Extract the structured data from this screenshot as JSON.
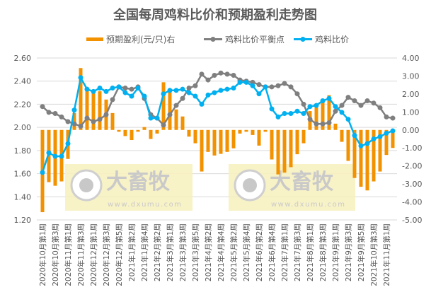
{
  "chart_data": {
    "type": "bar+line",
    "title": "全国每周鸡料比价和预期盈利走势图",
    "legend_position": "top",
    "grid": true,
    "colors": {
      "profit": "#f39200",
      "breakeven": "#7f7f7f",
      "ratio": "#00b0f0",
      "watermark_bg": "#f7f0bd"
    },
    "left_axis": {
      "ylim": [
        1.2,
        2.6
      ],
      "ticks": [
        "1.20",
        "1.40",
        "1.60",
        "1.80",
        "2.00",
        "2.20",
        "2.40",
        "2.60"
      ]
    },
    "right_axis": {
      "ylim": [
        -5,
        4
      ],
      "ticks": [
        "-5.00",
        "-4.00",
        "-3.00",
        "-2.00",
        "-1.00",
        "0.00",
        "1.00",
        "2.00",
        "3.00",
        "4.00"
      ]
    },
    "x_tick_labels": [
      "2020年10月第1周",
      "2020年10月第3周",
      "2020年11月第1周",
      "2020年11月第3周",
      "2020年12月第1周",
      "2020年12月第3周",
      "2020年12月第5周",
      "2021年1月第2周",
      "2021年1月第4周",
      "2021年2月第2周",
      "2021年3月第1周",
      "2021年3月第3周",
      "2021年3月第5周",
      "2021年4月第2周",
      "2021年4月第4周",
      "2021年5月第2周",
      "2021年5月第4周",
      "2021年6月第2周",
      "2021年6月第4周",
      "2021年7月第1周",
      "2021年7月第3周",
      "2021年8月第1周",
      "2021年8月第3周",
      "2021年9月第1周",
      "2021年9月第3周",
      "2021年9月第5周",
      "2021年10月第3周",
      "2021年11月第1周"
    ],
    "series": [
      {
        "name": "预期盈利(元/只)右",
        "type": "bar",
        "axis": "right",
        "values": [
          -4.57,
          -2.9,
          -3.1,
          -2.86,
          -1.61,
          0.94,
          3.44,
          2.26,
          2.13,
          2.15,
          1.69,
          0.94,
          -0.1,
          -0.34,
          -0.56,
          -0.1,
          0.16,
          -0.5,
          -0.2,
          2.65,
          2.13,
          1.14,
          0.75,
          -0.37,
          -0.74,
          -2.31,
          -1.22,
          -1.42,
          -1.33,
          -1.22,
          -1.02,
          -0.2,
          -0.1,
          -0.28,
          -0.87,
          -0.1,
          -1.64,
          -2.47,
          -2.37,
          -2.07,
          -1.35,
          -0.74,
          1.05,
          1.3,
          1.73,
          1.93,
          0.35,
          -0.66,
          -1.72,
          -2.67,
          -3.16,
          -3.36,
          -2.86,
          -2.31,
          -1.39,
          -1.0
        ]
      },
      {
        "name": "鸡料比价平衡点",
        "type": "line",
        "axis": "left",
        "values": [
          2.18,
          2.13,
          2.12,
          2.09,
          2.05,
          2.03,
          2.01,
          2.08,
          2.05,
          2.07,
          2.11,
          2.24,
          2.35,
          2.34,
          2.33,
          2.35,
          2.25,
          2.11,
          2.08,
          2.02,
          2.11,
          2.19,
          2.25,
          2.34,
          2.36,
          2.46,
          2.41,
          2.45,
          2.47,
          2.46,
          2.45,
          2.41,
          2.4,
          2.39,
          2.37,
          2.35,
          2.35,
          2.36,
          2.38,
          2.35,
          2.29,
          2.2,
          2.07,
          2.03,
          2.03,
          2.04,
          2.14,
          2.19,
          2.26,
          2.23,
          2.19,
          2.23,
          2.21,
          2.17,
          2.09,
          2.08
        ]
      },
      {
        "name": "鸡料比价",
        "type": "line",
        "axis": "left",
        "values": [
          1.61,
          1.78,
          1.75,
          1.75,
          1.86,
          2.15,
          2.43,
          2.33,
          2.31,
          2.34,
          2.31,
          2.34,
          2.35,
          2.3,
          2.27,
          2.34,
          2.27,
          2.08,
          2.08,
          2.29,
          2.32,
          2.32,
          2.33,
          2.3,
          2.27,
          2.2,
          2.28,
          2.3,
          2.32,
          2.33,
          2.34,
          2.39,
          2.39,
          2.36,
          2.29,
          2.35,
          2.16,
          2.09,
          2.12,
          2.12,
          2.14,
          2.12,
          2.18,
          2.19,
          2.23,
          2.25,
          2.18,
          2.13,
          2.07,
          1.93,
          1.84,
          1.86,
          1.9,
          1.92,
          1.95,
          1.97
        ]
      }
    ],
    "watermark": {
      "brand": "大畜牧",
      "url": "www.dxumu.com"
    }
  }
}
